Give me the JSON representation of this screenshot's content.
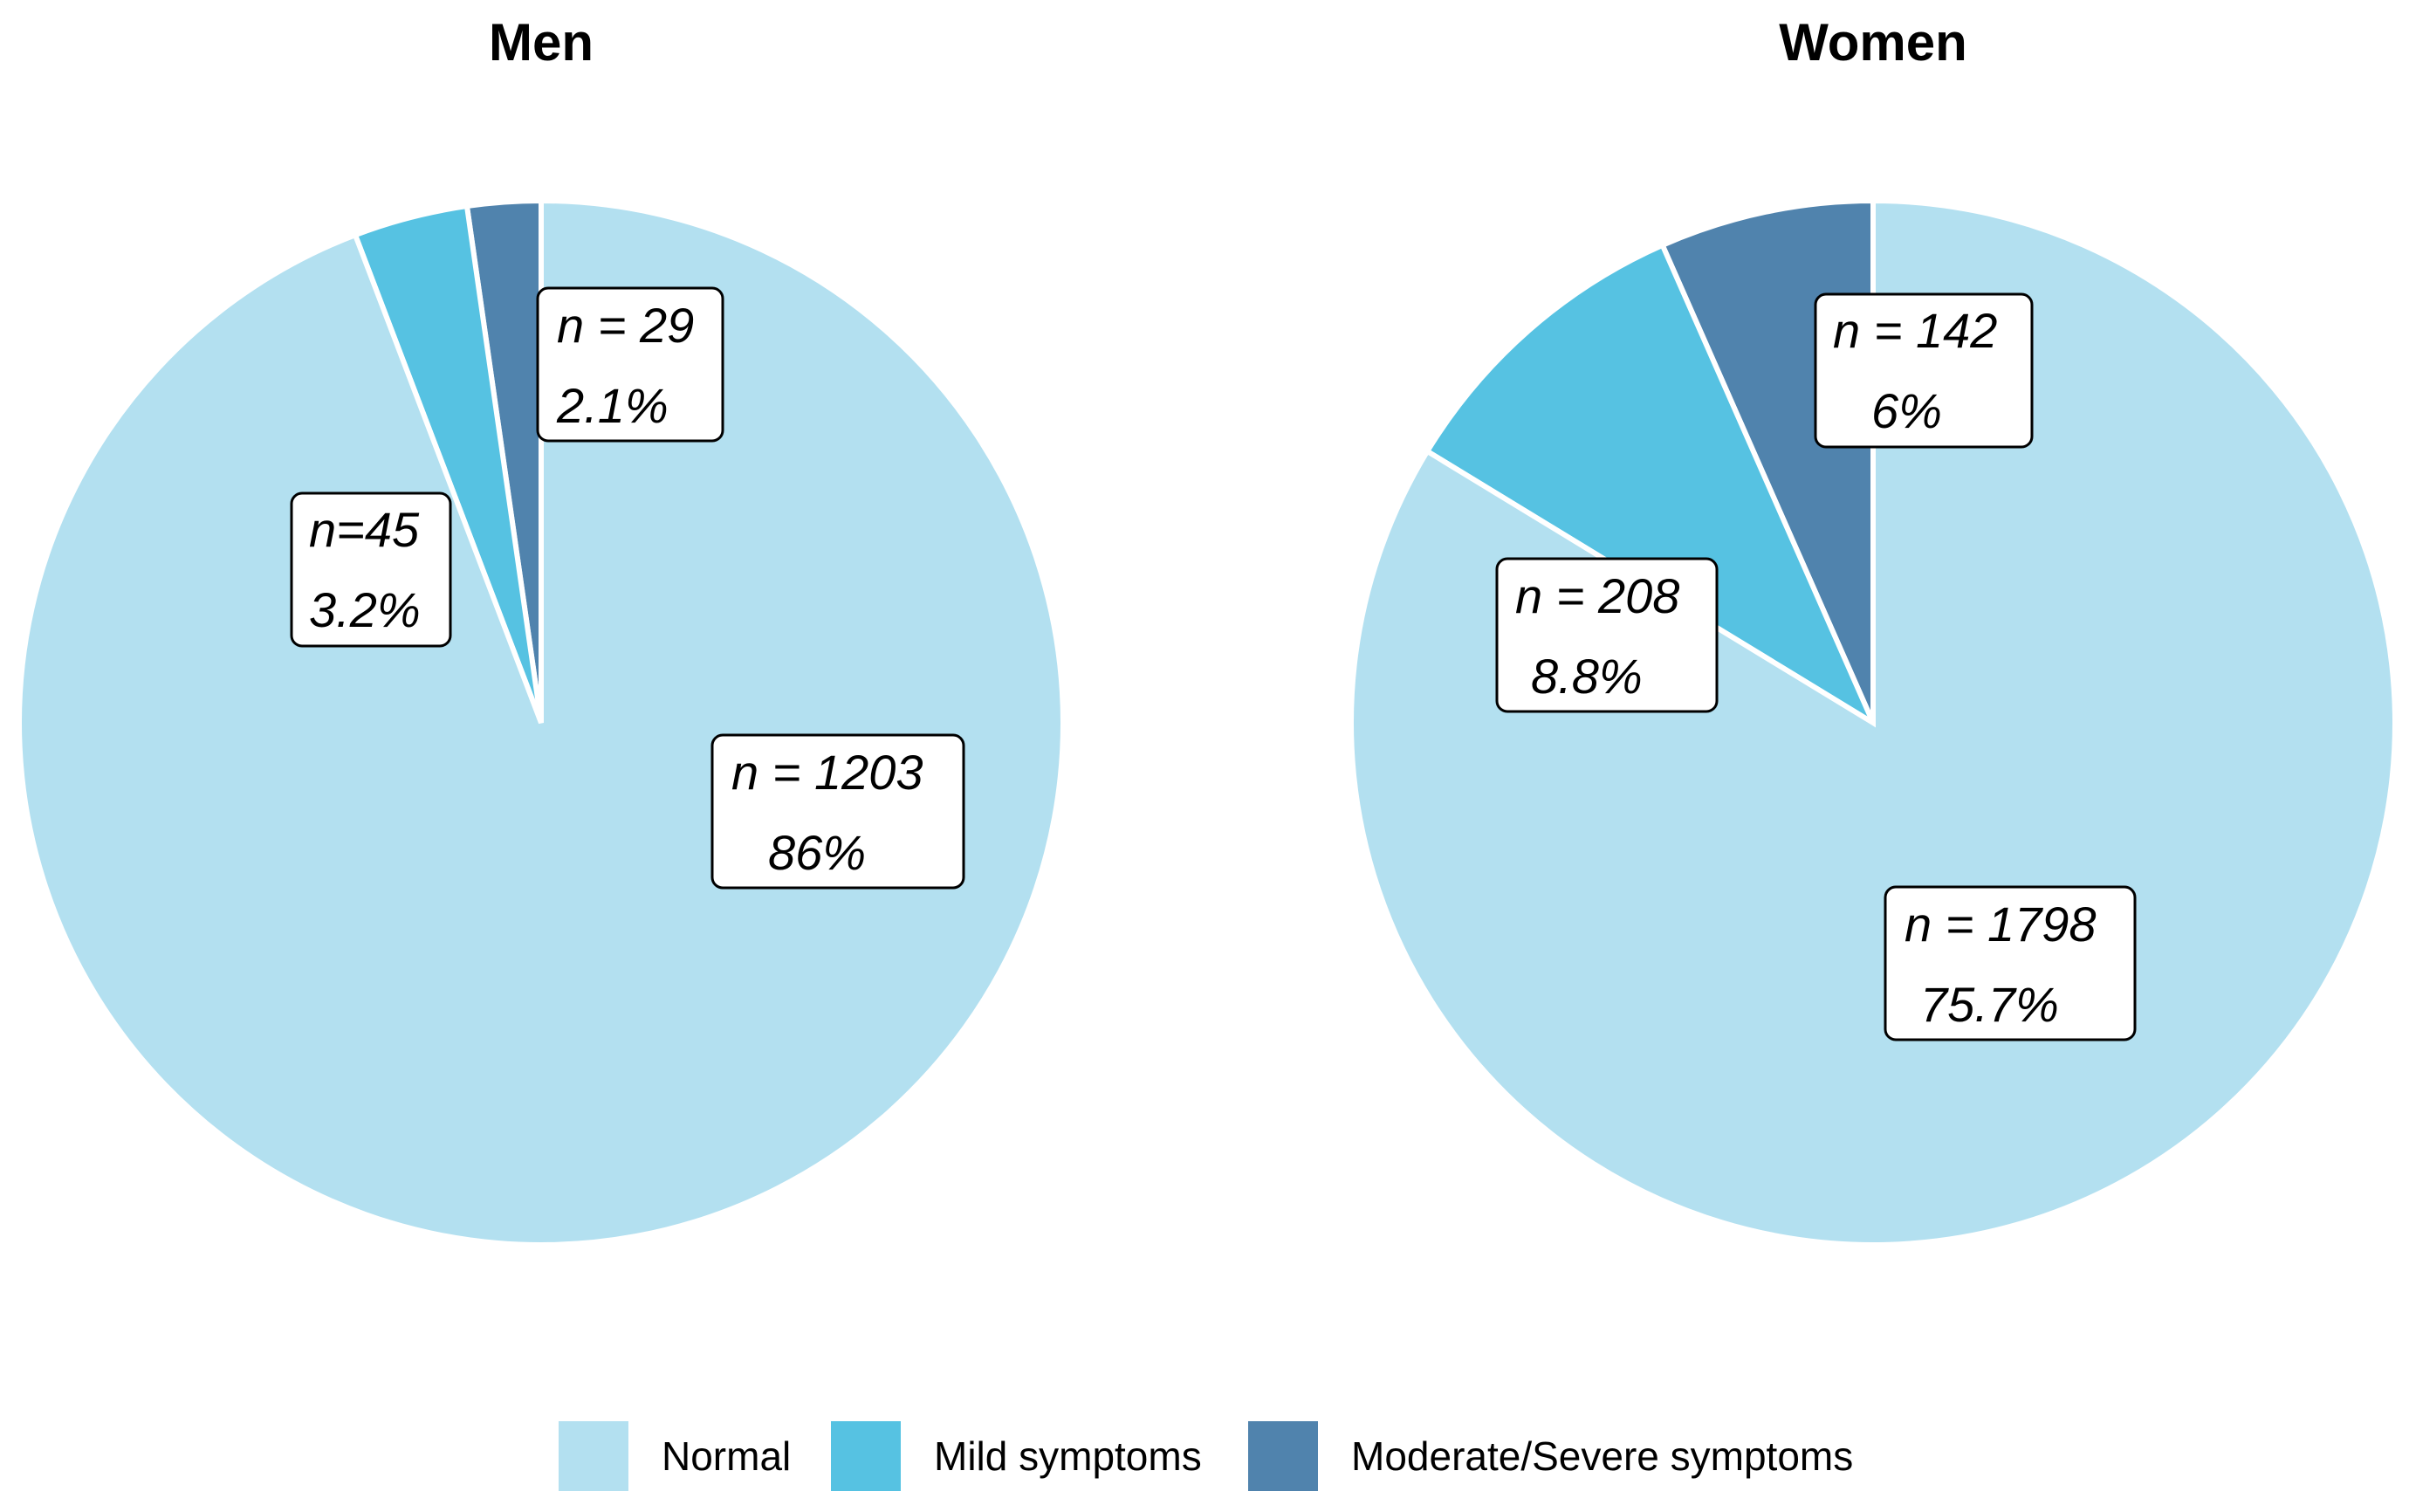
{
  "chart_data": [
    {
      "type": "pie",
      "title": "Men",
      "start": "12 o'clock",
      "direction": "counterclockwise from top: Moderate/Severe, Mild, then Normal",
      "slices": [
        {
          "category": "Moderate/Severe symptoms",
          "n": 29,
          "n_label": "n = 29",
          "percent": 2.1,
          "percent_label": "2.1%"
        },
        {
          "category": "Mild symptoms",
          "n": 45,
          "n_label": "n=45",
          "percent": 3.2,
          "percent_label": "3.2%"
        },
        {
          "category": "Normal",
          "n": 1203,
          "n_label": "n = 1203",
          "percent": 86,
          "percent_label": "86%"
        }
      ]
    },
    {
      "type": "pie",
      "title": "Women",
      "start": "12 o'clock",
      "direction": "counterclockwise from top: Moderate/Severe, Mild, then Normal",
      "slices": [
        {
          "category": "Moderate/Severe symptoms",
          "n": 142,
          "n_label": "n = 142",
          "percent": 6,
          "percent_label": "6%"
        },
        {
          "category": "Mild symptoms",
          "n": 208,
          "n_label": "n = 208",
          "percent": 8.8,
          "percent_label": "8.8%"
        },
        {
          "category": "Normal",
          "n": 1798,
          "n_label": "n = 1798",
          "percent": 75.7,
          "percent_label": "75.7%"
        }
      ]
    }
  ],
  "legend": {
    "position": "bottom-center",
    "items": [
      {
        "label": "Normal",
        "color": "#b3e0f0"
      },
      {
        "label": "Mild symptoms",
        "color": "#56c2e2"
      },
      {
        "label": "Moderate/Severe symptoms",
        "color": "#5083ad"
      }
    ]
  },
  "colors": {
    "Normal": "#b3e0f0",
    "Mild symptoms": "#56c2e2",
    "Moderate/Severe symptoms": "#5083ad"
  }
}
